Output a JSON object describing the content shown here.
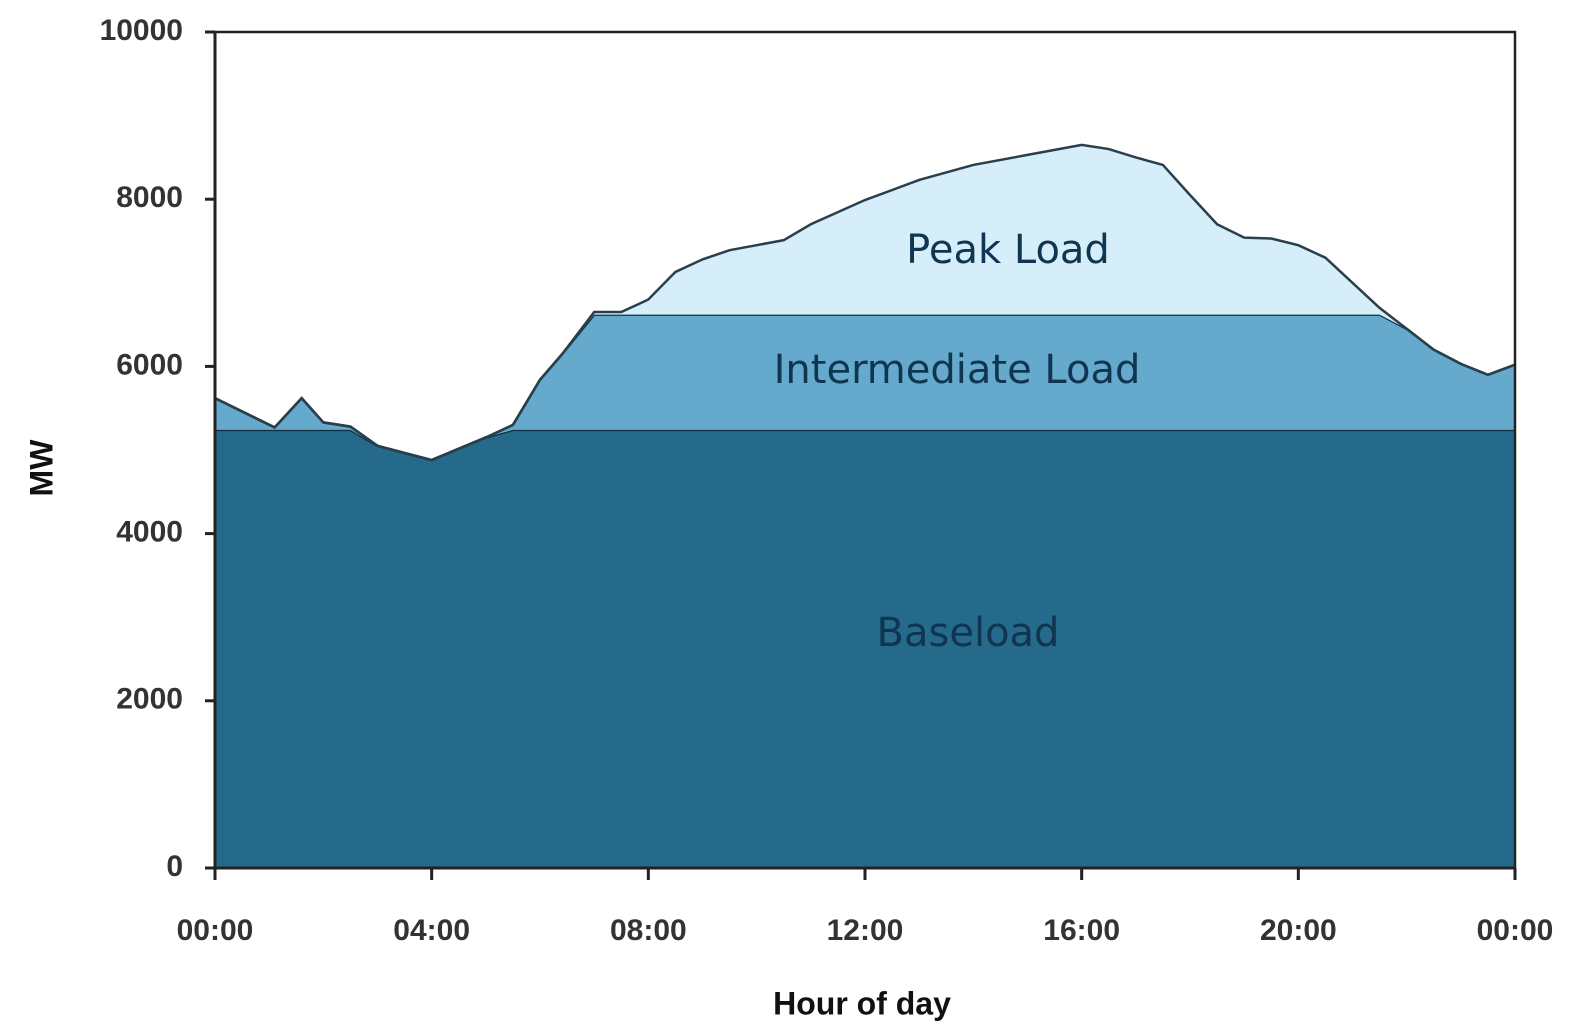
{
  "chart_data": {
    "type": "stacked_area",
    "x_label": "Hour of day",
    "y_label": "MW",
    "x": [
      0,
      1.1,
      1.6,
      2,
      2.5,
      3,
      4,
      5,
      5.5,
      6,
      6.4,
      7,
      7.5,
      8,
      8.5,
      9,
      9.5,
      10,
      10.5,
      11,
      12,
      13,
      14,
      15,
      16,
      16.5,
      17,
      17.5,
      18,
      18.5,
      19,
      19.5,
      20,
      20.5,
      21,
      21.5,
      22,
      22.5,
      23,
      23.5,
      24
    ],
    "series": [
      {
        "name": "Baseload",
        "color": "#256a8a",
        "values": [
          5240,
          5240,
          5240,
          5240,
          5240,
          5050,
          4880,
          5150,
          5240,
          5240,
          5240,
          5240,
          5240,
          5240,
          5240,
          5240,
          5240,
          5240,
          5240,
          5240,
          5240,
          5240,
          5240,
          5240,
          5240,
          5240,
          5240,
          5240,
          5240,
          5240,
          5240,
          5240,
          5240,
          5240,
          5240,
          5240,
          5240,
          5240,
          5240,
          5240,
          5240
        ]
      },
      {
        "name": "Intermediate Load",
        "color": "#65a9cc",
        "values": [
          380,
          30,
          380,
          90,
          40,
          0,
          0,
          0,
          60,
          600,
          900,
          1380,
          1380,
          1380,
          1380,
          1380,
          1380,
          1380,
          1380,
          1380,
          1380,
          1380,
          1380,
          1380,
          1380,
          1380,
          1380,
          1380,
          1380,
          1380,
          1380,
          1380,
          1380,
          1380,
          1380,
          1380,
          1210,
          960,
          790,
          660,
          780
        ]
      },
      {
        "name": "Peak Load",
        "color": "#d6eefa",
        "values": [
          0,
          0,
          0,
          0,
          0,
          0,
          0,
          0,
          0,
          0,
          0,
          30,
          30,
          180,
          510,
          660,
          770,
          830,
          890,
          1080,
          1370,
          1610,
          1790,
          1910,
          2030,
          1980,
          1880,
          1790,
          1430,
          1080,
          920,
          910,
          830,
          680,
          380,
          80,
          0,
          0,
          0,
          0,
          0
        ]
      }
    ],
    "xlim": [
      0,
      24
    ],
    "xticks": [
      {
        "value": 0,
        "label": "00:00"
      },
      {
        "value": 4,
        "label": "04:00"
      },
      {
        "value": 8,
        "label": "08:00"
      },
      {
        "value": 12,
        "label": "12:00"
      },
      {
        "value": 16,
        "label": "16:00"
      },
      {
        "value": 20,
        "label": "20:00"
      },
      {
        "value": 24,
        "label": "00:00"
      }
    ],
    "ylim": [
      0,
      10000
    ],
    "yticks": [
      0,
      2000,
      4000,
      6000,
      8000,
      10000
    ],
    "grid": false
  }
}
